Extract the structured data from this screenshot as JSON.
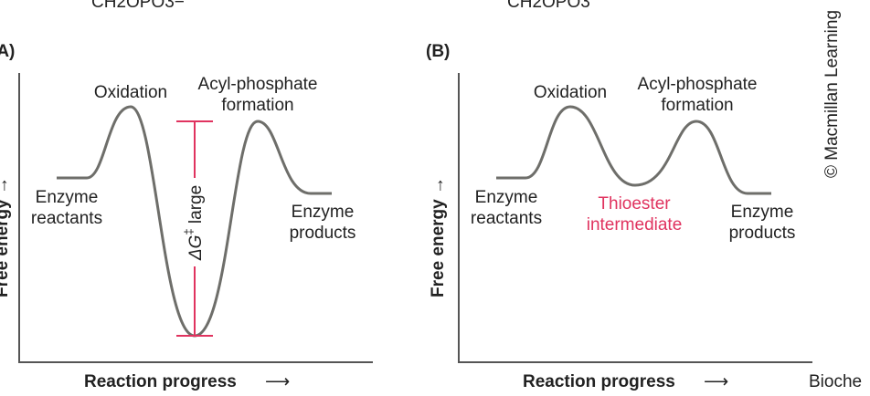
{
  "header_fragments": [
    "CH2OPO3−",
    "CH2OPO3"
  ],
  "panels": [
    {
      "tag": "(A)",
      "y_label": "Free energy →",
      "x_label": "Reaction progress",
      "x_arrow": "⟶",
      "labels": {
        "peak1": "Oxidation",
        "peak2_line1": "Acyl-phosphate",
        "peak2_line2": "formation",
        "start_line1": "Enzyme",
        "start_line2": "reactants",
        "end_line1": "Enzyme",
        "end_line2": "products",
        "barrier_symbol": "ΔG",
        "barrier_super": "‡",
        "barrier_text": "large"
      }
    },
    {
      "tag": "(B)",
      "y_label": "Free energy →",
      "x_label": "Reaction progress",
      "x_arrow": "⟶",
      "labels": {
        "peak1": "Oxidation",
        "peak2_line1": "Acyl-phosphate",
        "peak2_line2": "formation",
        "start_line1": "Enzyme",
        "start_line2": "reactants",
        "mid_line1": "Thioester",
        "mid_line2": "intermediate",
        "end_line1": "Enzyme",
        "end_line2": "products"
      }
    }
  ],
  "copyright": "© Macmillan Learning",
  "footer_fragment": "Bioche",
  "colors": {
    "curve": "#6e6e6a",
    "axis": "#555555",
    "accent": "#e0335f",
    "text": "#222222"
  }
}
